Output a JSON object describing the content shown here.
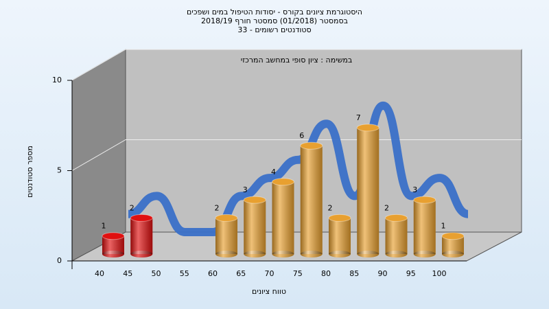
{
  "chart_data": {
    "type": "bar",
    "title": [
      "היסטוגרמת ציונים בקורס - יסודות הטיפול במים ושפכים",
      "בסמסטר  (01/2018)  סמסטר חורף 2018/19",
      "סטודנטים רשומים - 33"
    ],
    "annotation": "במשימה : ציון סופי במחשב המרכזי",
    "x_label": "טווח ציונים",
    "y_label": "מספר סטודנטים",
    "categories": [
      "40",
      "45",
      "50",
      "55",
      "60",
      "65",
      "70",
      "75",
      "80",
      "85",
      "90",
      "95",
      "100"
    ],
    "values": [
      1,
      2,
      0,
      0,
      2,
      3,
      4,
      6,
      2,
      7,
      2,
      3,
      1
    ],
    "colors": [
      "#e01010",
      "#e01010",
      "#e8a030",
      "#e8a030",
      "#e8a030",
      "#e8a030",
      "#e8a030",
      "#e8a030",
      "#e8a030",
      "#e8a030",
      "#e8a030",
      "#e8a030",
      "#e8a030"
    ],
    "curve_color": "#3a70c8",
    "ylim": [
      0,
      10
    ],
    "yticks": [
      0,
      5,
      10
    ],
    "grid": true
  }
}
